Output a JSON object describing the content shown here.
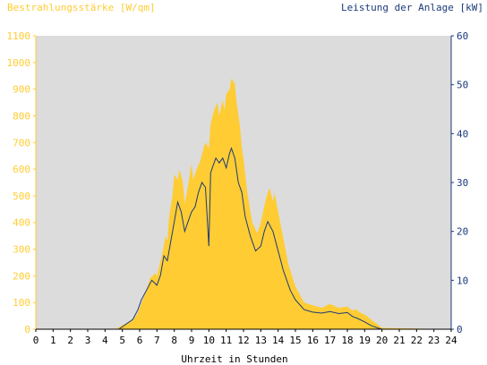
{
  "chart_data": {
    "type": "area",
    "left_axis_title": "Bestrahlungsstärke [W/qm]",
    "right_axis_title": "Leistung der Anlage [kW]",
    "xlabel": "Uhrzeit in Stunden",
    "x_ticks": [
      "0",
      "1",
      "2",
      "3",
      "4",
      "5",
      "6",
      "7",
      "8",
      "9",
      "10",
      "11",
      "12",
      "13",
      "14",
      "15",
      "16",
      "17",
      "18",
      "19",
      "20",
      "21",
      "22",
      "23",
      "24"
    ],
    "y_left_ticks": [
      "0",
      "100",
      "200",
      "300",
      "400",
      "500",
      "600",
      "700",
      "800",
      "900",
      "1000",
      "1100"
    ],
    "y_right_ticks": [
      "0",
      "10",
      "20",
      "30",
      "40",
      "50",
      "60"
    ],
    "xlim": [
      0,
      24
    ],
    "ylim_left": [
      0,
      1100
    ],
    "ylim_right": [
      0,
      60
    ],
    "grid": false,
    "colors": {
      "left_axis": "#ffcc33",
      "right_axis": "#1a3a7a",
      "irradiance_fill": "#ffcc33",
      "power_line": "#1a3a7a",
      "plot_background": "#dcdcdc",
      "axis": "#000000"
    },
    "series": [
      {
        "key": "irradiance",
        "axis": "left",
        "x": [
          0,
          4.6,
          5.0,
          5.5,
          5.8,
          6.0,
          6.3,
          6.6,
          6.9,
          7.0,
          7.3,
          7.5,
          7.6,
          7.7,
          7.9,
          8.0,
          8.2,
          8.3,
          8.5,
          8.6,
          8.8,
          9.0,
          9.1,
          9.3,
          9.5,
          9.7,
          9.8,
          10.0,
          10.1,
          10.3,
          10.5,
          10.6,
          10.8,
          10.9,
          11.0,
          11.2,
          11.3,
          11.5,
          11.6,
          11.8,
          11.9,
          12.0,
          12.2,
          12.5,
          12.8,
          13.0,
          13.3,
          13.5,
          13.7,
          13.8,
          14.0,
          14.3,
          14.6,
          15.0,
          15.5,
          16.0,
          16.5,
          17.0,
          17.5,
          18.0,
          18.3,
          18.5,
          18.8,
          19.0,
          19.3,
          19.7,
          20.0,
          24
        ],
        "y": [
          0,
          0,
          15,
          30,
          50,
          80,
          130,
          190,
          210,
          200,
          280,
          350,
          330,
          420,
          500,
          580,
          560,
          600,
          550,
          470,
          540,
          620,
          560,
          600,
          630,
          680,
          700,
          680,
          770,
          820,
          850,
          800,
          860,
          820,
          880,
          900,
          940,
          920,
          850,
          760,
          680,
          640,
          520,
          400,
          360,
          400,
          490,
          530,
          480,
          510,
          440,
          340,
          240,
          160,
          100,
          90,
          80,
          95,
          80,
          85,
          70,
          75,
          60,
          55,
          40,
          20,
          5,
          0
        ]
      },
      {
        "key": "power",
        "axis": "right",
        "x": [
          0,
          4.8,
          5.2,
          5.6,
          5.9,
          6.1,
          6.4,
          6.7,
          7.0,
          7.2,
          7.4,
          7.6,
          7.8,
          8.0,
          8.2,
          8.4,
          8.6,
          8.8,
          9.0,
          9.2,
          9.4,
          9.6,
          9.8,
          10.0,
          10.1,
          10.2,
          10.4,
          10.6,
          10.8,
          11.0,
          11.2,
          11.3,
          11.5,
          11.7,
          11.9,
          12.1,
          12.4,
          12.7,
          13.0,
          13.2,
          13.4,
          13.7,
          14.0,
          14.3,
          14.7,
          15.0,
          15.5,
          16.0,
          16.5,
          17.0,
          17.5,
          18.0,
          18.3,
          18.6,
          19.0,
          19.4,
          19.8,
          20.0,
          24
        ],
        "y": [
          0,
          0,
          1,
          2,
          4,
          6,
          8,
          10,
          9,
          11,
          15,
          14,
          18,
          22,
          26,
          24,
          20,
          22,
          24,
          25,
          28,
          30,
          29,
          17,
          32,
          33,
          35,
          34,
          35,
          33,
          36,
          37,
          35,
          30,
          28,
          23,
          19,
          16,
          17,
          20,
          22,
          20,
          16,
          12,
          8,
          6,
          4,
          3.5,
          3.3,
          3.6,
          3.2,
          3.4,
          2.6,
          2.2,
          1.5,
          0.7,
          0.2,
          0,
          0
        ]
      }
    ]
  }
}
